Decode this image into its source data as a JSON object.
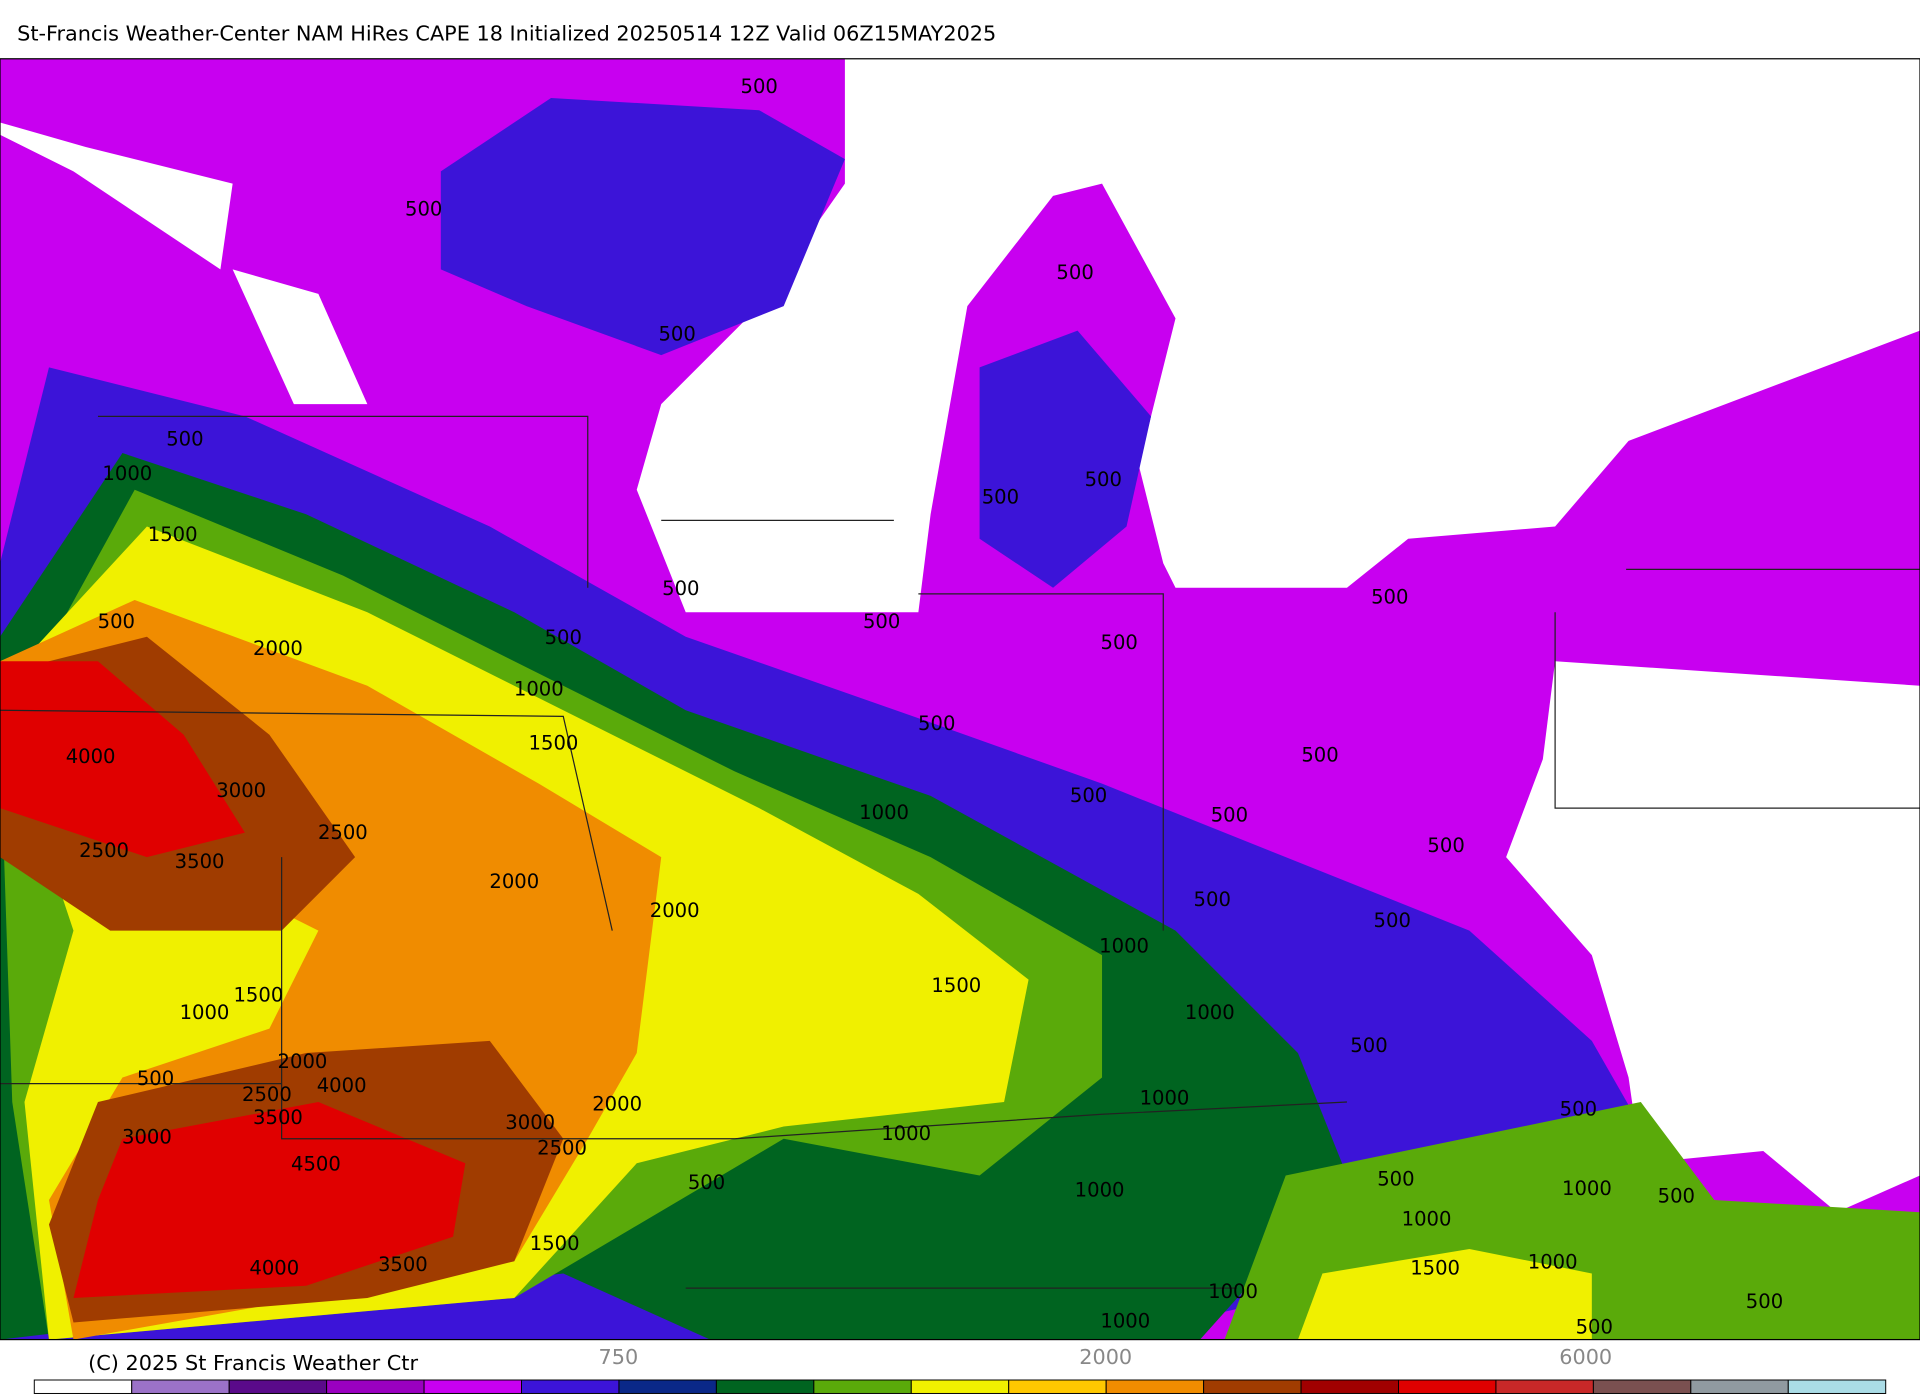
{
  "header": {
    "title": "St-Francis Weather-Center NAM HiRes CAPE  18 Initialized 20250514 12Z Valid 06Z15MAY2025"
  },
  "contour_labels": [
    500,
    500,
    500,
    500,
    500,
    1000,
    1500,
    500,
    500,
    500,
    500,
    2000,
    500,
    500,
    500,
    500,
    1000,
    1500,
    500,
    4000,
    3000,
    500,
    500,
    500,
    1000,
    2500,
    2500,
    3500,
    2000,
    2000,
    500,
    500,
    500,
    1000,
    1500,
    1500,
    1000,
    1000,
    500,
    2000,
    4000,
    500,
    2500,
    1000,
    3500,
    2000,
    3000,
    500,
    3000,
    1000,
    2500,
    4500,
    500,
    500,
    1000,
    1000,
    500,
    1000,
    1500,
    4000,
    3500,
    1500,
    1000,
    500,
    1000,
    1000,
    500
  ],
  "colorbar": {
    "colors": [
      "#ffffff",
      "#9b72c8",
      "#5a0a8a",
      "#9a00c0",
      "#c800f0",
      "#3c14d8",
      "#0a2888",
      "#006420",
      "#5aaa0a",
      "#f0f000",
      "#ffc800",
      "#f08c00",
      "#a03c00",
      "#a00000",
      "#e00000",
      "#c82828",
      "#7a5050",
      "#909aa0",
      "#aadce6"
    ],
    "labels": [
      "750",
      "2000",
      "6000"
    ]
  },
  "footer": {
    "copyright": "(C) 2025 St Francis Weather Ctr"
  }
}
